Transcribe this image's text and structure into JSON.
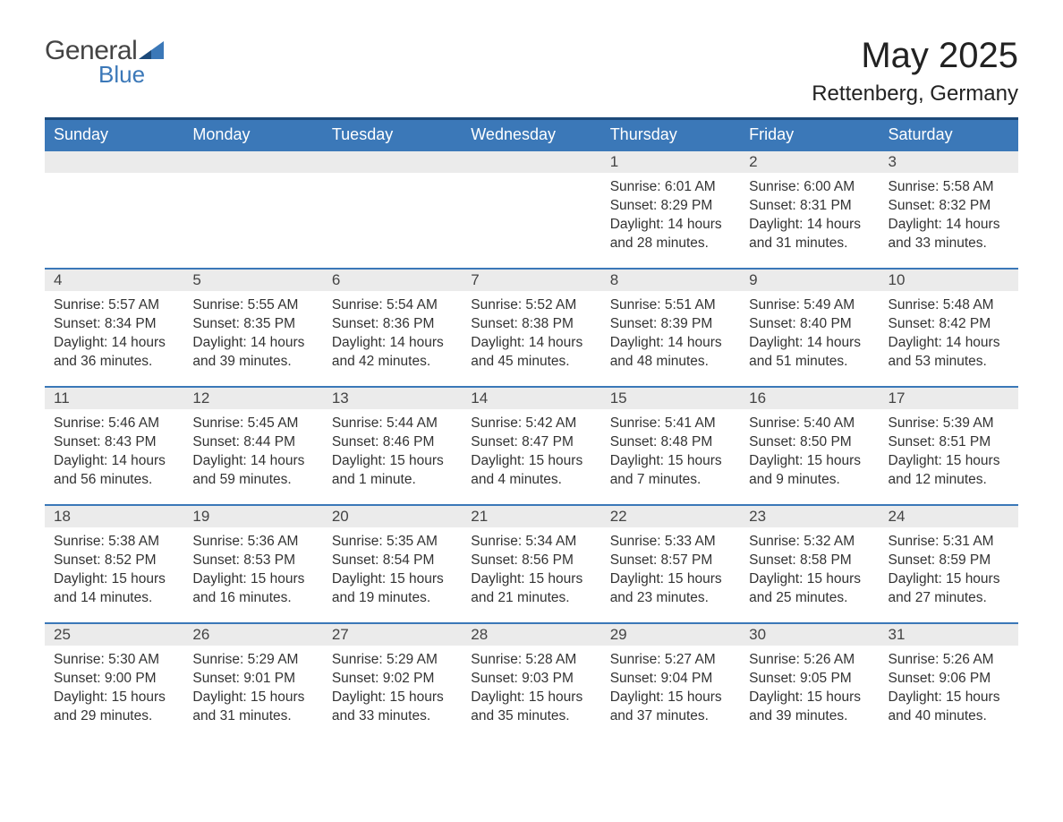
{
  "logo": {
    "word1": "General",
    "word2": "Blue"
  },
  "title": {
    "month": "May 2025",
    "location": "Rettenberg, Germany"
  },
  "colors": {
    "header_bg": "#3b78b8",
    "header_border": "#1c4a7a",
    "daynum_bg": "#ebebeb",
    "text": "#333333",
    "logo_gray": "#444444",
    "logo_blue": "#3b78b8"
  },
  "weekdays": [
    "Sunday",
    "Monday",
    "Tuesday",
    "Wednesday",
    "Thursday",
    "Friday",
    "Saturday"
  ],
  "weeks": [
    [
      {
        "n": "",
        "sr": "",
        "ss": "",
        "dl": ""
      },
      {
        "n": "",
        "sr": "",
        "ss": "",
        "dl": ""
      },
      {
        "n": "",
        "sr": "",
        "ss": "",
        "dl": ""
      },
      {
        "n": "",
        "sr": "",
        "ss": "",
        "dl": ""
      },
      {
        "n": "1",
        "sr": "Sunrise: 6:01 AM",
        "ss": "Sunset: 8:29 PM",
        "dl": "Daylight: 14 hours and 28 minutes."
      },
      {
        "n": "2",
        "sr": "Sunrise: 6:00 AM",
        "ss": "Sunset: 8:31 PM",
        "dl": "Daylight: 14 hours and 31 minutes."
      },
      {
        "n": "3",
        "sr": "Sunrise: 5:58 AM",
        "ss": "Sunset: 8:32 PM",
        "dl": "Daylight: 14 hours and 33 minutes."
      }
    ],
    [
      {
        "n": "4",
        "sr": "Sunrise: 5:57 AM",
        "ss": "Sunset: 8:34 PM",
        "dl": "Daylight: 14 hours and 36 minutes."
      },
      {
        "n": "5",
        "sr": "Sunrise: 5:55 AM",
        "ss": "Sunset: 8:35 PM",
        "dl": "Daylight: 14 hours and 39 minutes."
      },
      {
        "n": "6",
        "sr": "Sunrise: 5:54 AM",
        "ss": "Sunset: 8:36 PM",
        "dl": "Daylight: 14 hours and 42 minutes."
      },
      {
        "n": "7",
        "sr": "Sunrise: 5:52 AM",
        "ss": "Sunset: 8:38 PM",
        "dl": "Daylight: 14 hours and 45 minutes."
      },
      {
        "n": "8",
        "sr": "Sunrise: 5:51 AM",
        "ss": "Sunset: 8:39 PM",
        "dl": "Daylight: 14 hours and 48 minutes."
      },
      {
        "n": "9",
        "sr": "Sunrise: 5:49 AM",
        "ss": "Sunset: 8:40 PM",
        "dl": "Daylight: 14 hours and 51 minutes."
      },
      {
        "n": "10",
        "sr": "Sunrise: 5:48 AM",
        "ss": "Sunset: 8:42 PM",
        "dl": "Daylight: 14 hours and 53 minutes."
      }
    ],
    [
      {
        "n": "11",
        "sr": "Sunrise: 5:46 AM",
        "ss": "Sunset: 8:43 PM",
        "dl": "Daylight: 14 hours and 56 minutes."
      },
      {
        "n": "12",
        "sr": "Sunrise: 5:45 AM",
        "ss": "Sunset: 8:44 PM",
        "dl": "Daylight: 14 hours and 59 minutes."
      },
      {
        "n": "13",
        "sr": "Sunrise: 5:44 AM",
        "ss": "Sunset: 8:46 PM",
        "dl": "Daylight: 15 hours and 1 minute."
      },
      {
        "n": "14",
        "sr": "Sunrise: 5:42 AM",
        "ss": "Sunset: 8:47 PM",
        "dl": "Daylight: 15 hours and 4 minutes."
      },
      {
        "n": "15",
        "sr": "Sunrise: 5:41 AM",
        "ss": "Sunset: 8:48 PM",
        "dl": "Daylight: 15 hours and 7 minutes."
      },
      {
        "n": "16",
        "sr": "Sunrise: 5:40 AM",
        "ss": "Sunset: 8:50 PM",
        "dl": "Daylight: 15 hours and 9 minutes."
      },
      {
        "n": "17",
        "sr": "Sunrise: 5:39 AM",
        "ss": "Sunset: 8:51 PM",
        "dl": "Daylight: 15 hours and 12 minutes."
      }
    ],
    [
      {
        "n": "18",
        "sr": "Sunrise: 5:38 AM",
        "ss": "Sunset: 8:52 PM",
        "dl": "Daylight: 15 hours and 14 minutes."
      },
      {
        "n": "19",
        "sr": "Sunrise: 5:36 AM",
        "ss": "Sunset: 8:53 PM",
        "dl": "Daylight: 15 hours and 16 minutes."
      },
      {
        "n": "20",
        "sr": "Sunrise: 5:35 AM",
        "ss": "Sunset: 8:54 PM",
        "dl": "Daylight: 15 hours and 19 minutes."
      },
      {
        "n": "21",
        "sr": "Sunrise: 5:34 AM",
        "ss": "Sunset: 8:56 PM",
        "dl": "Daylight: 15 hours and 21 minutes."
      },
      {
        "n": "22",
        "sr": "Sunrise: 5:33 AM",
        "ss": "Sunset: 8:57 PM",
        "dl": "Daylight: 15 hours and 23 minutes."
      },
      {
        "n": "23",
        "sr": "Sunrise: 5:32 AM",
        "ss": "Sunset: 8:58 PM",
        "dl": "Daylight: 15 hours and 25 minutes."
      },
      {
        "n": "24",
        "sr": "Sunrise: 5:31 AM",
        "ss": "Sunset: 8:59 PM",
        "dl": "Daylight: 15 hours and 27 minutes."
      }
    ],
    [
      {
        "n": "25",
        "sr": "Sunrise: 5:30 AM",
        "ss": "Sunset: 9:00 PM",
        "dl": "Daylight: 15 hours and 29 minutes."
      },
      {
        "n": "26",
        "sr": "Sunrise: 5:29 AM",
        "ss": "Sunset: 9:01 PM",
        "dl": "Daylight: 15 hours and 31 minutes."
      },
      {
        "n": "27",
        "sr": "Sunrise: 5:29 AM",
        "ss": "Sunset: 9:02 PM",
        "dl": "Daylight: 15 hours and 33 minutes."
      },
      {
        "n": "28",
        "sr": "Sunrise: 5:28 AM",
        "ss": "Sunset: 9:03 PM",
        "dl": "Daylight: 15 hours and 35 minutes."
      },
      {
        "n": "29",
        "sr": "Sunrise: 5:27 AM",
        "ss": "Sunset: 9:04 PM",
        "dl": "Daylight: 15 hours and 37 minutes."
      },
      {
        "n": "30",
        "sr": "Sunrise: 5:26 AM",
        "ss": "Sunset: 9:05 PM",
        "dl": "Daylight: 15 hours and 39 minutes."
      },
      {
        "n": "31",
        "sr": "Sunrise: 5:26 AM",
        "ss": "Sunset: 9:06 PM",
        "dl": "Daylight: 15 hours and 40 minutes."
      }
    ]
  ]
}
